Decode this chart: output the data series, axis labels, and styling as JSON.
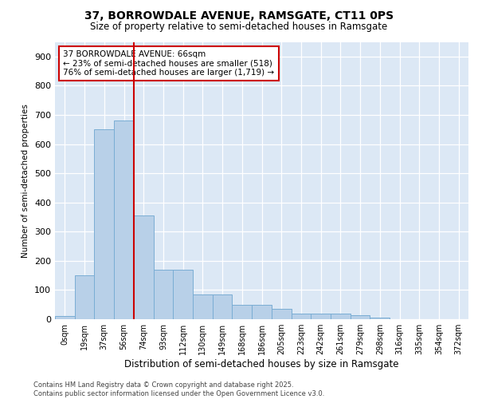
{
  "title_line1": "37, BORROWDALE AVENUE, RAMSGATE, CT11 0PS",
  "title_line2": "Size of property relative to semi-detached houses in Ramsgate",
  "xlabel": "Distribution of semi-detached houses by size in Ramsgate",
  "ylabel": "Number of semi-detached properties",
  "categories": [
    "0sqm",
    "19sqm",
    "37sqm",
    "56sqm",
    "74sqm",
    "93sqm",
    "112sqm",
    "130sqm",
    "149sqm",
    "168sqm",
    "186sqm",
    "205sqm",
    "223sqm",
    "242sqm",
    "261sqm",
    "279sqm",
    "298sqm",
    "316sqm",
    "335sqm",
    "354sqm",
    "372sqm"
  ],
  "bar_heights": [
    10,
    150,
    650,
    680,
    355,
    170,
    170,
    85,
    85,
    50,
    50,
    35,
    20,
    20,
    20,
    15,
    5,
    0,
    0,
    0,
    0
  ],
  "bar_color": "#b8d0e8",
  "bar_edge_color": "#7aadd4",
  "red_line_x": 3.5,
  "annotation_text": "37 BORROWDALE AVENUE: 66sqm\n← 23% of semi-detached houses are smaller (518)\n76% of semi-detached houses are larger (1,719) →",
  "annotation_box_color": "#ffffff",
  "annotation_box_edge_color": "#cc0000",
  "ylim": [
    0,
    950
  ],
  "yticks": [
    0,
    100,
    200,
    300,
    400,
    500,
    600,
    700,
    800,
    900
  ],
  "background_color": "#dce8f5",
  "footer_text": "Contains HM Land Registry data © Crown copyright and database right 2025.\nContains public sector information licensed under the Open Government Licence v3.0.",
  "grid_color": "#ffffff",
  "bar_width": 1.0
}
